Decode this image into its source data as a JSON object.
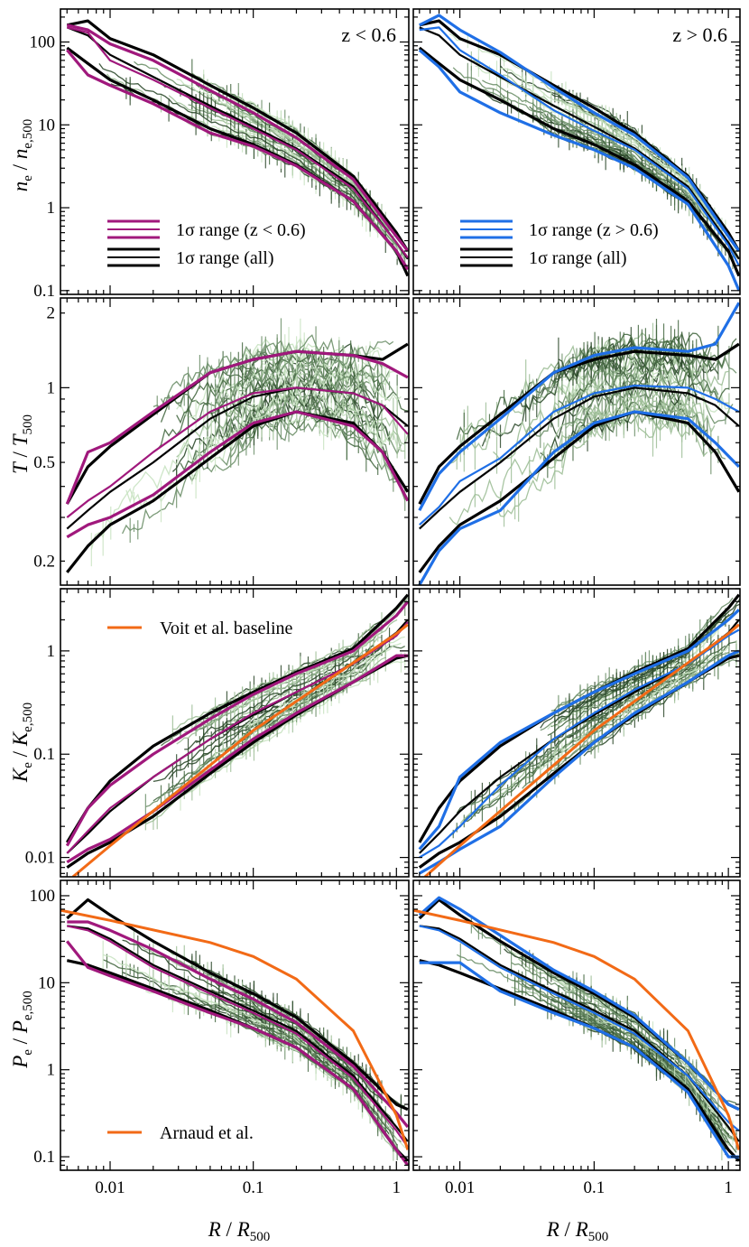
{
  "colors": {
    "low_z": "#a0187c",
    "high_z": "#1f6fe6",
    "all": "#000000",
    "baseline": "#f26a16",
    "individual": [
      "#2e4a2c",
      "#476a44",
      "#6e906a",
      "#9fbf98",
      "#c9e3c2"
    ]
  },
  "columns": [
    {
      "key": "lowz",
      "label_text": "z < 0.6",
      "range_label": "1σ range (z < 0.6)",
      "accent": "#a0187c"
    },
    {
      "key": "highz",
      "label_text": "z > 0.6",
      "range_label": "1σ range (z > 0.6)",
      "accent": "#1f6fe6"
    }
  ],
  "legend_all_label": "1σ range (all)",
  "x_axis": {
    "label": "R / R500",
    "scale": "log",
    "lim": [
      0.0045,
      1.22
    ],
    "ticks": [
      "0.01",
      "0.1",
      "1"
    ]
  },
  "rows": [
    {
      "key": "ne",
      "ylabel": "ne / ne,500",
      "ylim": [
        0.09,
        250
      ],
      "ticks": [
        "0.1",
        "1",
        "10",
        "100"
      ]
    },
    {
      "key": "T",
      "ylabel": "T / T500",
      "ylim": [
        0.16,
        2.3
      ],
      "ticks": [
        "0.2",
        "0.5",
        "1",
        "2"
      ]
    },
    {
      "key": "K",
      "ylabel": "Ke / Ke,500",
      "ylim": [
        0.0065,
        4.0
      ],
      "ticks": [
        "0.01",
        "0.1",
        "1"
      ],
      "baseline_label": "Voit et al. baseline"
    },
    {
      "key": "P",
      "ylabel": "Pe / Pe,500",
      "ylim": [
        0.07,
        150
      ],
      "ticks": [
        "0.1",
        "1",
        "10",
        "100"
      ],
      "baseline_label": "Arnaud et al."
    }
  ],
  "chart_data": [
    {
      "type": "line",
      "panel": "ne, z < 0.6",
      "xscale": "log",
      "yscale": "log",
      "series": [
        {
          "name": "1σ range (z < 0.6)",
          "role": "band",
          "x": [
            0.005,
            0.007,
            0.01,
            0.02,
            0.05,
            0.1,
            0.2,
            0.5,
            1.0,
            1.2
          ],
          "lower": [
            80,
            40,
            30,
            18,
            8,
            5.5,
            3.2,
            1.2,
            0.3,
            0.18
          ],
          "median": [
            150,
            130,
            60,
            35,
            16,
            9,
            5,
            1.7,
            0.38,
            0.25
          ],
          "upper": [
            160,
            140,
            95,
            60,
            26,
            14,
            7,
            2.2,
            0.45,
            0.3
          ]
        },
        {
          "name": "1σ range (all)",
          "role": "band",
          "x": [
            0.005,
            0.007,
            0.01,
            0.02,
            0.05,
            0.1,
            0.2,
            0.5,
            1.0,
            1.2
          ],
          "lower": [
            85,
            55,
            35,
            20,
            9,
            5.8,
            3.3,
            1.2,
            0.3,
            0.15
          ],
          "median": [
            150,
            120,
            70,
            38,
            17,
            9.5,
            5.2,
            1.8,
            0.38,
            0.24
          ],
          "upper": [
            160,
            180,
            110,
            70,
            30,
            16,
            8,
            2.4,
            0.5,
            0.3
          ]
        }
      ]
    },
    {
      "type": "line",
      "panel": "ne, z > 0.6",
      "xscale": "log",
      "yscale": "log",
      "series": [
        {
          "name": "1σ range (z > 0.6)",
          "role": "band",
          "x": [
            0.005,
            0.007,
            0.01,
            0.02,
            0.05,
            0.1,
            0.2,
            0.5,
            1.0,
            1.2
          ],
          "lower": [
            80,
            50,
            25,
            14,
            7.5,
            5,
            3,
            1.1,
            0.2,
            0.1
          ],
          "median": [
            140,
            150,
            80,
            40,
            15,
            8.5,
            5,
            1.7,
            0.35,
            0.2
          ],
          "upper": [
            160,
            210,
            140,
            75,
            28,
            14,
            7.5,
            2.3,
            0.45,
            0.3
          ]
        },
        {
          "name": "1σ range (all)",
          "role": "band",
          "x": [
            0.005,
            0.007,
            0.01,
            0.02,
            0.05,
            0.1,
            0.2,
            0.5,
            1.0,
            1.2
          ],
          "lower": [
            85,
            55,
            35,
            20,
            9,
            5.8,
            3.3,
            1.2,
            0.3,
            0.15
          ],
          "median": [
            150,
            120,
            70,
            38,
            17,
            9.5,
            5.2,
            1.8,
            0.38,
            0.24
          ],
          "upper": [
            160,
            180,
            110,
            70,
            30,
            16,
            8,
            2.4,
            0.5,
            0.3
          ]
        }
      ]
    },
    {
      "type": "line",
      "panel": "T, z < 0.6",
      "xscale": "log",
      "yscale": "log",
      "series": [
        {
          "name": "1σ range (z < 0.6)",
          "role": "band",
          "x": [
            0.005,
            0.007,
            0.01,
            0.02,
            0.05,
            0.1,
            0.2,
            0.5,
            0.8,
            1.2
          ],
          "lower": [
            0.25,
            0.28,
            0.3,
            0.37,
            0.55,
            0.72,
            0.8,
            0.7,
            0.55,
            0.35
          ],
          "median": [
            0.3,
            0.35,
            0.4,
            0.55,
            0.8,
            0.95,
            1.0,
            0.95,
            0.85,
            0.65
          ],
          "upper": [
            0.34,
            0.55,
            0.6,
            0.8,
            1.15,
            1.3,
            1.4,
            1.35,
            1.25,
            1.1
          ]
        },
        {
          "name": "1σ range (all)",
          "role": "band",
          "x": [
            0.005,
            0.007,
            0.01,
            0.02,
            0.05,
            0.1,
            0.2,
            0.5,
            0.8,
            1.2
          ],
          "lower": [
            0.18,
            0.23,
            0.28,
            0.35,
            0.52,
            0.7,
            0.8,
            0.72,
            0.55,
            0.38
          ],
          "median": [
            0.27,
            0.32,
            0.38,
            0.5,
            0.75,
            0.92,
            1.0,
            0.95,
            0.85,
            0.7
          ],
          "upper": [
            0.34,
            0.48,
            0.58,
            0.78,
            1.15,
            1.3,
            1.4,
            1.35,
            1.3,
            1.5
          ]
        }
      ]
    },
    {
      "type": "line",
      "panel": "T, z > 0.6",
      "xscale": "log",
      "yscale": "log",
      "series": [
        {
          "name": "1σ range (z > 0.6)",
          "role": "band",
          "x": [
            0.005,
            0.007,
            0.01,
            0.02,
            0.05,
            0.1,
            0.2,
            0.5,
            0.8,
            1.2
          ],
          "lower": [
            0.16,
            0.22,
            0.27,
            0.32,
            0.55,
            0.72,
            0.8,
            0.75,
            0.6,
            0.48
          ],
          "median": [
            0.28,
            0.33,
            0.42,
            0.52,
            0.8,
            0.95,
            1.02,
            1.0,
            0.9,
            0.8
          ],
          "upper": [
            0.32,
            0.45,
            0.55,
            0.75,
            1.15,
            1.35,
            1.45,
            1.4,
            1.5,
            2.2
          ]
        },
        {
          "name": "1σ range (all)",
          "role": "band",
          "x": [
            0.005,
            0.007,
            0.01,
            0.02,
            0.05,
            0.1,
            0.2,
            0.5,
            0.8,
            1.2
          ],
          "lower": [
            0.18,
            0.23,
            0.28,
            0.35,
            0.52,
            0.7,
            0.8,
            0.72,
            0.55,
            0.38
          ],
          "median": [
            0.27,
            0.32,
            0.38,
            0.5,
            0.75,
            0.92,
            1.0,
            0.95,
            0.85,
            0.7
          ],
          "upper": [
            0.34,
            0.48,
            0.58,
            0.78,
            1.15,
            1.3,
            1.4,
            1.35,
            1.3,
            1.5
          ]
        }
      ]
    },
    {
      "type": "line",
      "panel": "Ke, z < 0.6",
      "xscale": "log",
      "yscale": "log",
      "series": [
        {
          "name": "1σ range (z < 0.6)",
          "role": "band",
          "x": [
            0.005,
            0.007,
            0.01,
            0.02,
            0.05,
            0.1,
            0.2,
            0.5,
            1.0,
            1.2
          ],
          "lower": [
            0.009,
            0.012,
            0.015,
            0.028,
            0.07,
            0.14,
            0.25,
            0.5,
            0.9,
            0.9
          ],
          "median": [
            0.011,
            0.018,
            0.03,
            0.06,
            0.14,
            0.25,
            0.4,
            0.75,
            1.4,
            1.9
          ],
          "upper": [
            0.013,
            0.03,
            0.05,
            0.1,
            0.22,
            0.38,
            0.6,
            1.0,
            2.2,
            3.0
          ]
        },
        {
          "name": "1σ range (all)",
          "role": "band",
          "x": [
            0.005,
            0.007,
            0.01,
            0.02,
            0.05,
            0.1,
            0.2,
            0.5,
            1.0,
            1.2
          ],
          "lower": [
            0.008,
            0.011,
            0.014,
            0.025,
            0.065,
            0.13,
            0.24,
            0.5,
            0.85,
            0.9
          ],
          "median": [
            0.011,
            0.017,
            0.028,
            0.06,
            0.14,
            0.24,
            0.4,
            0.75,
            1.5,
            2.0
          ],
          "upper": [
            0.014,
            0.03,
            0.055,
            0.12,
            0.25,
            0.4,
            0.62,
            1.05,
            2.6,
            3.5
          ]
        },
        {
          "name": "Voit et al. baseline",
          "role": "line",
          "x": [
            0.0055,
            0.01,
            0.1,
            1.0,
            1.2
          ],
          "y": [
            0.0065,
            0.013,
            0.17,
            1.47,
            1.8
          ]
        }
      ]
    },
    {
      "type": "line",
      "panel": "Ke, z > 0.6",
      "xscale": "log",
      "yscale": "log",
      "series": [
        {
          "name": "1σ range (z > 0.6)",
          "role": "band",
          "x": [
            0.005,
            0.007,
            0.01,
            0.02,
            0.05,
            0.1,
            0.2,
            0.5,
            1.0,
            1.2
          ],
          "lower": [
            0.007,
            0.009,
            0.012,
            0.02,
            0.06,
            0.13,
            0.25,
            0.5,
            0.9,
            1.0
          ],
          "median": [
            0.01,
            0.013,
            0.02,
            0.05,
            0.14,
            0.25,
            0.42,
            0.75,
            1.4,
            1.6
          ],
          "upper": [
            0.012,
            0.02,
            0.06,
            0.13,
            0.25,
            0.4,
            0.6,
            1.0,
            2.0,
            2.5
          ]
        },
        {
          "name": "1σ range (all)",
          "role": "band",
          "x": [
            0.005,
            0.007,
            0.01,
            0.02,
            0.05,
            0.1,
            0.2,
            0.5,
            1.0,
            1.2
          ],
          "lower": [
            0.008,
            0.011,
            0.014,
            0.025,
            0.065,
            0.13,
            0.24,
            0.5,
            0.85,
            0.9
          ],
          "median": [
            0.011,
            0.017,
            0.028,
            0.06,
            0.14,
            0.24,
            0.4,
            0.75,
            1.5,
            2.0
          ],
          "upper": [
            0.014,
            0.03,
            0.055,
            0.12,
            0.25,
            0.4,
            0.62,
            1.05,
            2.6,
            3.5
          ]
        },
        {
          "name": "Voit et al. baseline",
          "role": "line",
          "x": [
            0.0055,
            0.01,
            0.1,
            1.0,
            1.2
          ],
          "y": [
            0.0065,
            0.013,
            0.17,
            1.47,
            1.8
          ]
        }
      ]
    },
    {
      "type": "line",
      "panel": "Pe, z < 0.6",
      "xscale": "log",
      "yscale": "log",
      "series": [
        {
          "name": "1σ range (z < 0.6)",
          "role": "band",
          "x": [
            0.005,
            0.007,
            0.01,
            0.02,
            0.05,
            0.1,
            0.2,
            0.5,
            1.0,
            1.2
          ],
          "lower": [
            30,
            15,
            12,
            8,
            4.5,
            3,
            1.8,
            0.6,
            0.12,
            0.08
          ],
          "median": [
            45,
            40,
            30,
            15,
            7.5,
            4.5,
            2.6,
            0.8,
            0.2,
            0.13
          ],
          "upper": [
            50,
            50,
            40,
            24,
            11,
            6.5,
            3.5,
            1.1,
            0.32,
            0.22
          ]
        },
        {
          "name": "1σ range (all)",
          "role": "band",
          "x": [
            0.005,
            0.007,
            0.01,
            0.02,
            0.05,
            0.1,
            0.2,
            0.5,
            1.0,
            1.2
          ],
          "lower": [
            18,
            16,
            13,
            8.5,
            4.8,
            3,
            1.8,
            0.6,
            0.12,
            0.09
          ],
          "median": [
            45,
            42,
            32,
            16,
            8,
            4.8,
            2.8,
            0.85,
            0.22,
            0.15
          ],
          "upper": [
            55,
            90,
            60,
            30,
            13,
            7.5,
            4,
            1.2,
            0.4,
            0.35
          ]
        },
        {
          "name": "Arnaud et al.",
          "role": "line",
          "x": [
            0.0045,
            0.01,
            0.05,
            0.1,
            0.2,
            0.5,
            1.0,
            1.2
          ],
          "y": [
            68,
            52,
            29,
            20,
            11,
            2.8,
            0.3,
            0.12
          ]
        }
      ]
    },
    {
      "type": "line",
      "panel": "Pe, z > 0.6",
      "xscale": "log",
      "yscale": "log",
      "series": [
        {
          "name": "1σ range (z > 0.6)",
          "role": "band",
          "x": [
            0.005,
            0.007,
            0.01,
            0.02,
            0.05,
            0.1,
            0.2,
            0.5,
            1.0,
            1.2
          ],
          "lower": [
            17,
            17,
            17,
            8,
            4.5,
            3,
            1.8,
            0.55,
            0.1,
            0.1
          ],
          "median": [
            45,
            40,
            30,
            15,
            7.5,
            4.5,
            2.6,
            0.85,
            0.25,
            0.2
          ],
          "upper": [
            60,
            95,
            70,
            35,
            14,
            8,
            4.2,
            1.2,
            0.4,
            0.35
          ]
        },
        {
          "name": "1σ range (all)",
          "role": "band",
          "x": [
            0.005,
            0.007,
            0.01,
            0.02,
            0.05,
            0.1,
            0.2,
            0.5,
            1.0,
            1.2
          ],
          "lower": [
            18,
            16,
            13,
            8.5,
            4.8,
            3,
            1.8,
            0.6,
            0.12,
            0.09
          ],
          "median": [
            45,
            42,
            32,
            16,
            8,
            4.8,
            2.8,
            0.85,
            0.22,
            0.15
          ],
          "upper": [
            55,
            90,
            60,
            30,
            13,
            7.5,
            4,
            1.2,
            0.4,
            0.35
          ]
        },
        {
          "name": "Arnaud et al.",
          "role": "line",
          "x": [
            0.0045,
            0.01,
            0.05,
            0.1,
            0.2,
            0.5,
            1.0,
            1.2
          ],
          "y": [
            68,
            52,
            29,
            20,
            11,
            2.8,
            0.3,
            0.12
          ]
        }
      ]
    }
  ]
}
